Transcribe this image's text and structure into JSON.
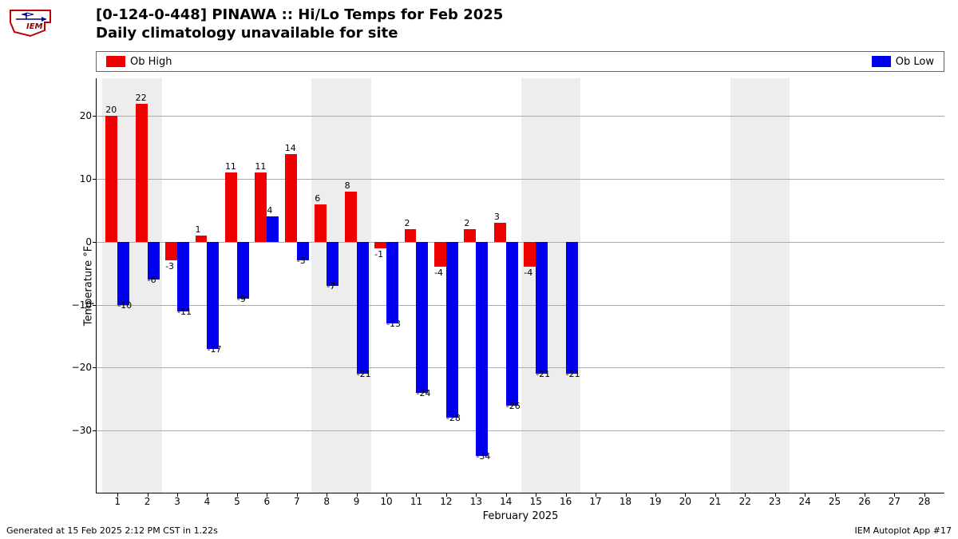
{
  "title_line1": "[0-124-0-448] PINAWA :: Hi/Lo Temps for Feb 2025",
  "title_line2": "Daily climatology unavailable for site",
  "legend": {
    "high": {
      "label": "Ob High",
      "color": "#ee0000"
    },
    "low": {
      "label": "Ob Low",
      "color": "#0000ee"
    }
  },
  "chart": {
    "type": "bar",
    "background_color": "#ffffff",
    "weekend_band_color": "#ededed",
    "grid_color": "#aaaaaa",
    "ylabel": "Temperature °F",
    "xlabel": "February 2025",
    "ylim": [
      -40,
      26
    ],
    "yticks": [
      -30,
      -20,
      -10,
      0,
      10,
      20
    ],
    "xticks": [
      1,
      2,
      3,
      4,
      5,
      6,
      7,
      8,
      9,
      10,
      11,
      12,
      13,
      14,
      15,
      16,
      17,
      18,
      19,
      20,
      21,
      22,
      23,
      24,
      25,
      26,
      27,
      28
    ],
    "x_range": [
      0.3,
      28.7
    ],
    "bar_half_width": 0.4,
    "weekend_days": [
      1,
      2,
      8,
      9,
      15,
      16,
      22,
      23
    ],
    "high_color": "#ee0000",
    "low_color": "#0000ee",
    "label_fontsize": 11,
    "tick_fontsize": 12,
    "days": [
      {
        "day": 1,
        "high": 20,
        "low": -10
      },
      {
        "day": 2,
        "high": 22,
        "low": -6
      },
      {
        "day": 3,
        "high": -3,
        "low": -11
      },
      {
        "day": 4,
        "high": 1,
        "low": -17
      },
      {
        "day": 5,
        "high": 11,
        "low": -9
      },
      {
        "day": 6,
        "high": 11,
        "low": 4
      },
      {
        "day": 7,
        "high": 14,
        "low": -3
      },
      {
        "day": 8,
        "high": 6,
        "low": -7
      },
      {
        "day": 9,
        "high": 8,
        "low": -21
      },
      {
        "day": 10,
        "high": -1,
        "low": -13
      },
      {
        "day": 11,
        "high": 2,
        "low": -24
      },
      {
        "day": 12,
        "high": -4,
        "low": -28
      },
      {
        "day": 13,
        "high": 2,
        "low": -34
      },
      {
        "day": 14,
        "high": 3,
        "low": -26
      },
      {
        "day": 15,
        "high": -4,
        "low": -21
      },
      {
        "day": 16,
        "high": null,
        "low": -21
      }
    ]
  },
  "footer_left": "Generated at 15 Feb 2025 2:12 PM CST in 1.22s",
  "footer_right": "IEM Autoplot App #17"
}
